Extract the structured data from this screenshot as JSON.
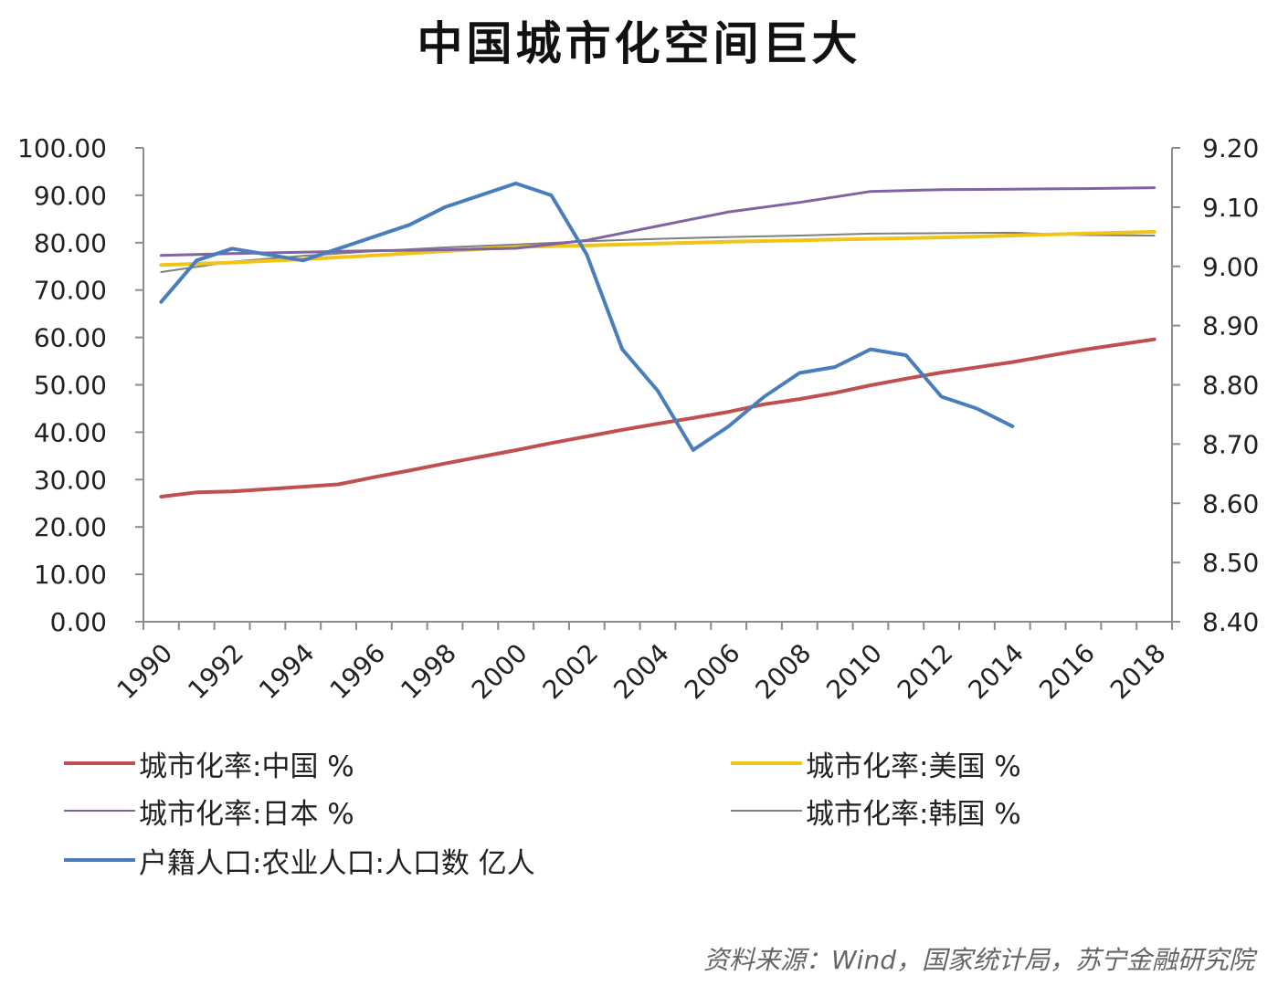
{
  "chart_data": {
    "type": "line",
    "title": "中国城市化空间巨大",
    "x_ticks": [
      "1990",
      "1992",
      "1994",
      "1996",
      "1998",
      "2000",
      "2002",
      "2004",
      "2006",
      "2008",
      "2010",
      "2012",
      "2014",
      "2016",
      "2018"
    ],
    "y_left": {
      "min": 0,
      "max": 100,
      "ticks": [
        "0.00",
        "10.00",
        "20.00",
        "30.00",
        "40.00",
        "50.00",
        "60.00",
        "70.00",
        "80.00",
        "90.00",
        "100.00"
      ]
    },
    "y_right": {
      "min": 8.4,
      "max": 9.2,
      "ticks": [
        "8.40",
        "8.50",
        "8.60",
        "8.70",
        "8.80",
        "8.90",
        "9.00",
        "9.10",
        "9.20"
      ]
    },
    "series": [
      {
        "name": "城市化率:中国 %",
        "axis": "left",
        "color": "#c0504d",
        "x": [
          1990,
          1991,
          1992,
          1993,
          1994,
          1995,
          1996,
          1997,
          1998,
          1999,
          2000,
          2001,
          2002,
          2003,
          2004,
          2005,
          2006,
          2007,
          2008,
          2009,
          2010,
          2011,
          2012,
          2013,
          2014,
          2015,
          2016,
          2017,
          2018
        ],
        "y": [
          26.4,
          27.3,
          27.5,
          28.0,
          28.5,
          29.0,
          30.5,
          31.9,
          33.4,
          34.8,
          36.2,
          37.7,
          39.1,
          40.5,
          41.8,
          43.0,
          44.3,
          45.9,
          47.0,
          48.3,
          49.9,
          51.3,
          52.6,
          53.7,
          54.8,
          56.1,
          57.4,
          58.5,
          59.6
        ]
      },
      {
        "name": "城市化率:美国 %",
        "axis": "left",
        "color": "#f0c419",
        "x": [
          1990,
          1992,
          1994,
          1996,
          1998,
          2000,
          2002,
          2004,
          2006,
          2008,
          2010,
          2012,
          2014,
          2016,
          2018
        ],
        "y": [
          75.3,
          75.8,
          76.5,
          77.3,
          78.2,
          79.1,
          79.4,
          79.8,
          80.2,
          80.5,
          80.8,
          81.1,
          81.5,
          81.9,
          82.3
        ]
      },
      {
        "name": "城市化率:日本 %",
        "axis": "left",
        "color": "#8064a2",
        "x": [
          1990,
          1992,
          1994,
          1996,
          1998,
          2000,
          2002,
          2004,
          2006,
          2008,
          2010,
          2012,
          2014,
          2016,
          2018
        ],
        "y": [
          77.3,
          77.7,
          78.0,
          78.3,
          78.5,
          78.8,
          80.5,
          83.5,
          86.5,
          88.5,
          90.8,
          91.2,
          91.3,
          91.4,
          91.6
        ]
      },
      {
        "name": "城市化率:韩国 %",
        "axis": "left",
        "color": "#7f7f7f",
        "x": [
          1990,
          1992,
          1994,
          1996,
          1998,
          2000,
          2002,
          2004,
          2006,
          2008,
          2010,
          2012,
          2014,
          2016,
          2018
        ],
        "y": [
          73.8,
          76.0,
          77.2,
          78.2,
          79.0,
          79.6,
          80.3,
          80.8,
          81.2,
          81.5,
          81.9,
          82.0,
          82.1,
          81.6,
          81.5
        ]
      },
      {
        "name": "户籍人口:农业人口:人口数 亿人",
        "axis": "right",
        "color": "#4a7ebb",
        "x": [
          1990,
          1991,
          1992,
          1993,
          1994,
          1995,
          1996,
          1997,
          1998,
          1999,
          2000,
          2001,
          2002,
          2003,
          2004,
          2005,
          2006,
          2007,
          2008,
          2009,
          2010,
          2011,
          2012,
          2013,
          2014
        ],
        "y": [
          8.94,
          9.01,
          9.03,
          9.02,
          9.01,
          9.03,
          9.05,
          9.07,
          9.1,
          9.12,
          9.14,
          9.12,
          9.02,
          8.86,
          8.79,
          8.69,
          8.73,
          8.78,
          8.82,
          8.83,
          8.86,
          8.85,
          8.78,
          8.76,
          8.73
        ]
      }
    ],
    "legend": [
      {
        "label": "城市化率:中国 %",
        "color": "#c0504d",
        "weight": 4
      },
      {
        "label": "城市化率:美国 %",
        "color": "#f0c419",
        "weight": 4
      },
      {
        "label": "城市化率:日本 %",
        "color": "#8064a2",
        "weight": 2
      },
      {
        "label": "城市化率:韩国 %",
        "color": "#7f7f7f",
        "weight": 2
      },
      {
        "label": "户籍人口:农业人口:人口数 亿人",
        "color": "#4a7ebb",
        "weight": 4
      }
    ],
    "legend_position": "bottom",
    "grid": false
  },
  "source_note": "资料来源：Wind，国家统计局，苏宁金融研究院"
}
